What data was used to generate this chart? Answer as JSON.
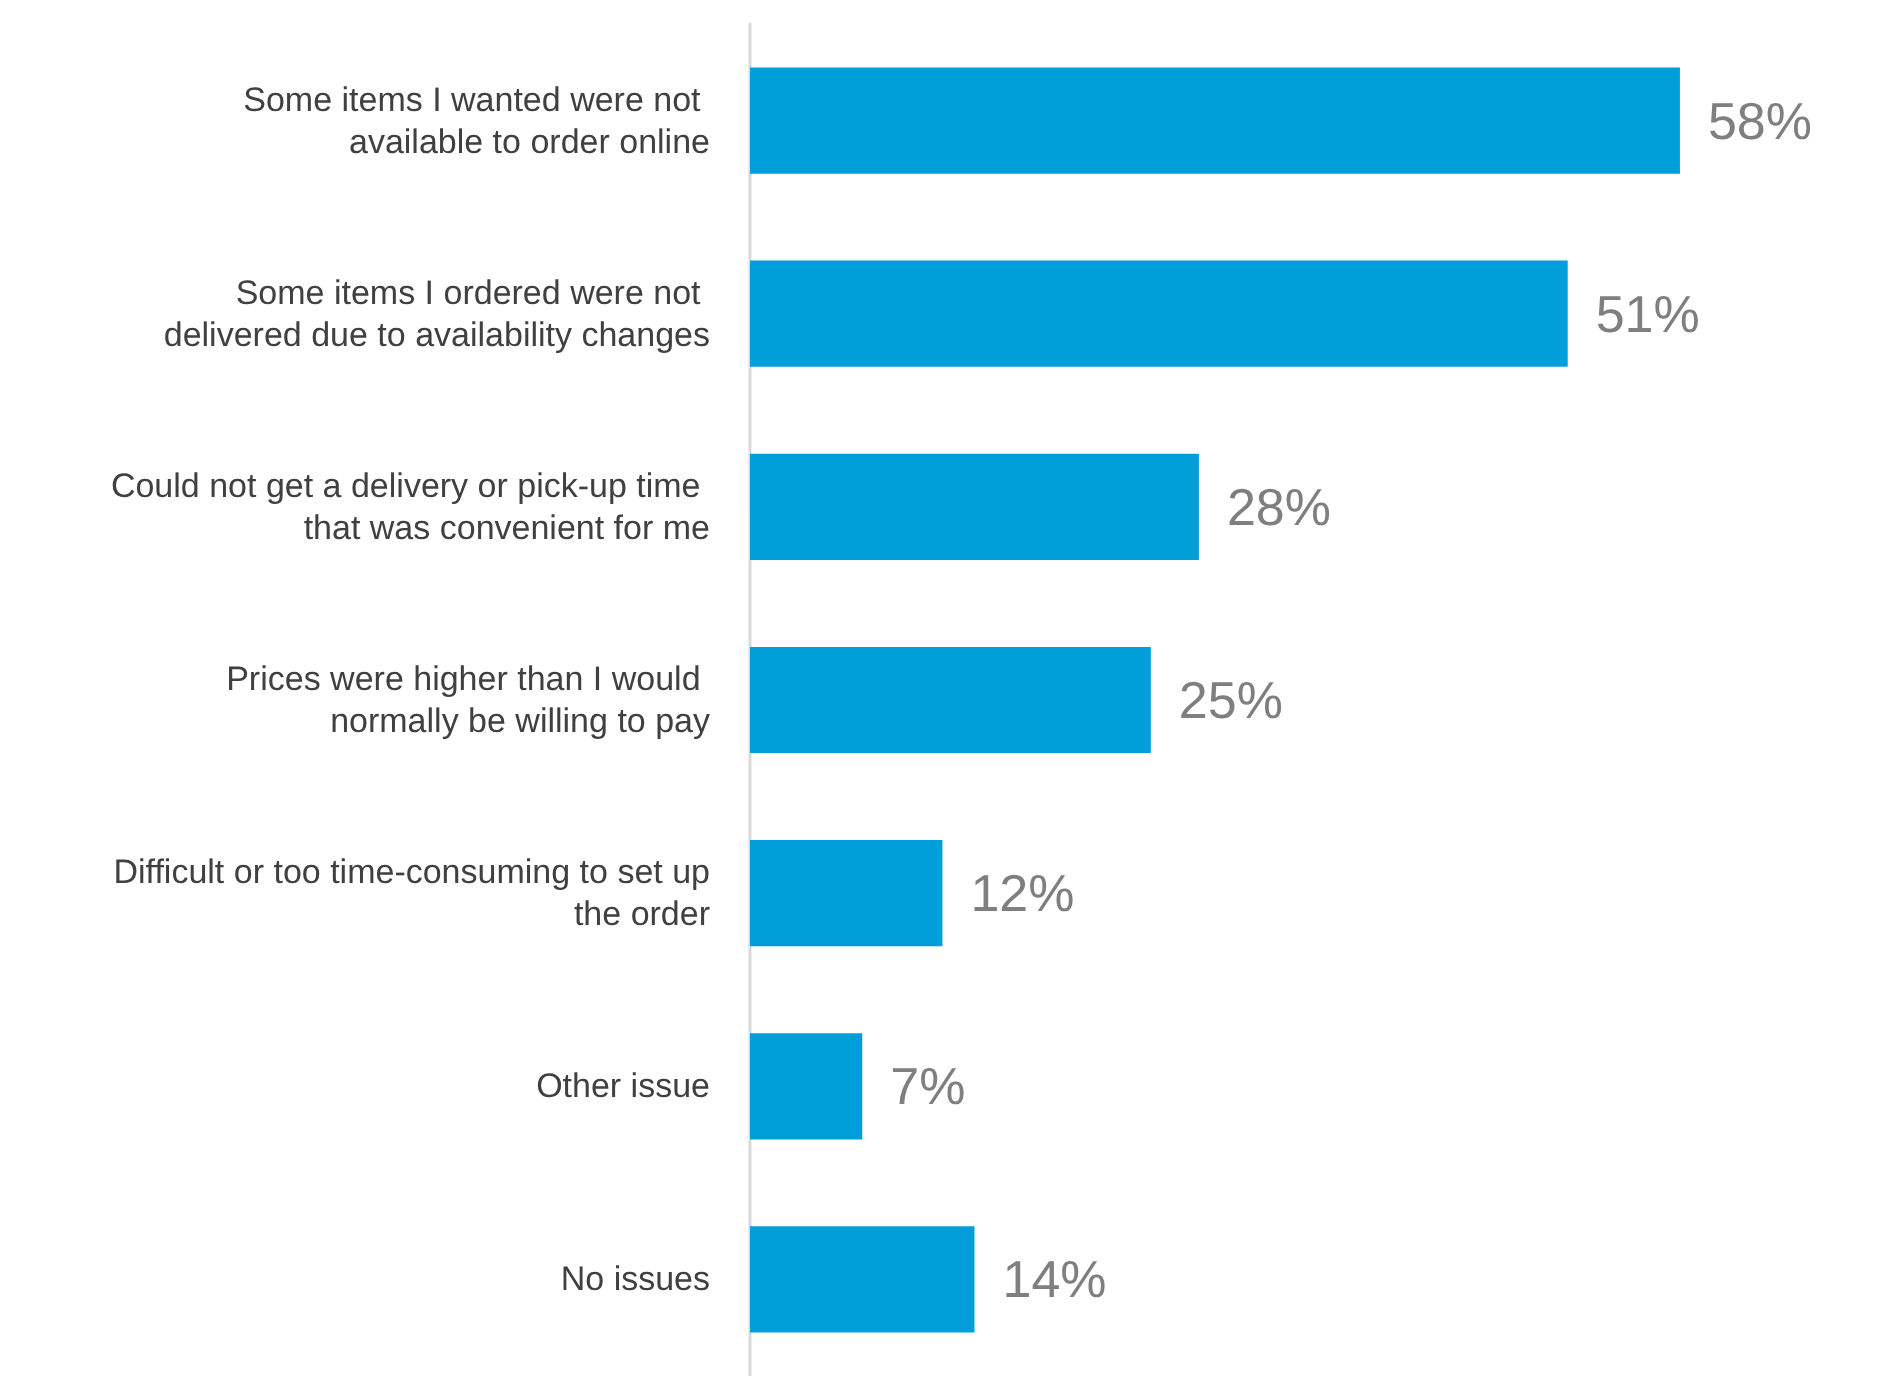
{
  "chart_data": {
    "type": "bar",
    "orientation": "horizontal",
    "categories": [
      "Some items I wanted were not available to order online",
      "Some items I ordered were not delivered due to availability changes",
      "Could not get a delivery or pick-up time that was convenient for me",
      "Prices were higher than I would normally be willing to pay",
      "Difficult or too time-consuming to set up the order",
      "Other issue",
      "No issues"
    ],
    "values": [
      58,
      51,
      28,
      25,
      12,
      7,
      14
    ],
    "value_labels": [
      "58%",
      "51%",
      "28%",
      "25%",
      "12%",
      "7%",
      "14%"
    ],
    "color": "#009fda",
    "tick_labels": "y",
    "grid": false
  }
}
